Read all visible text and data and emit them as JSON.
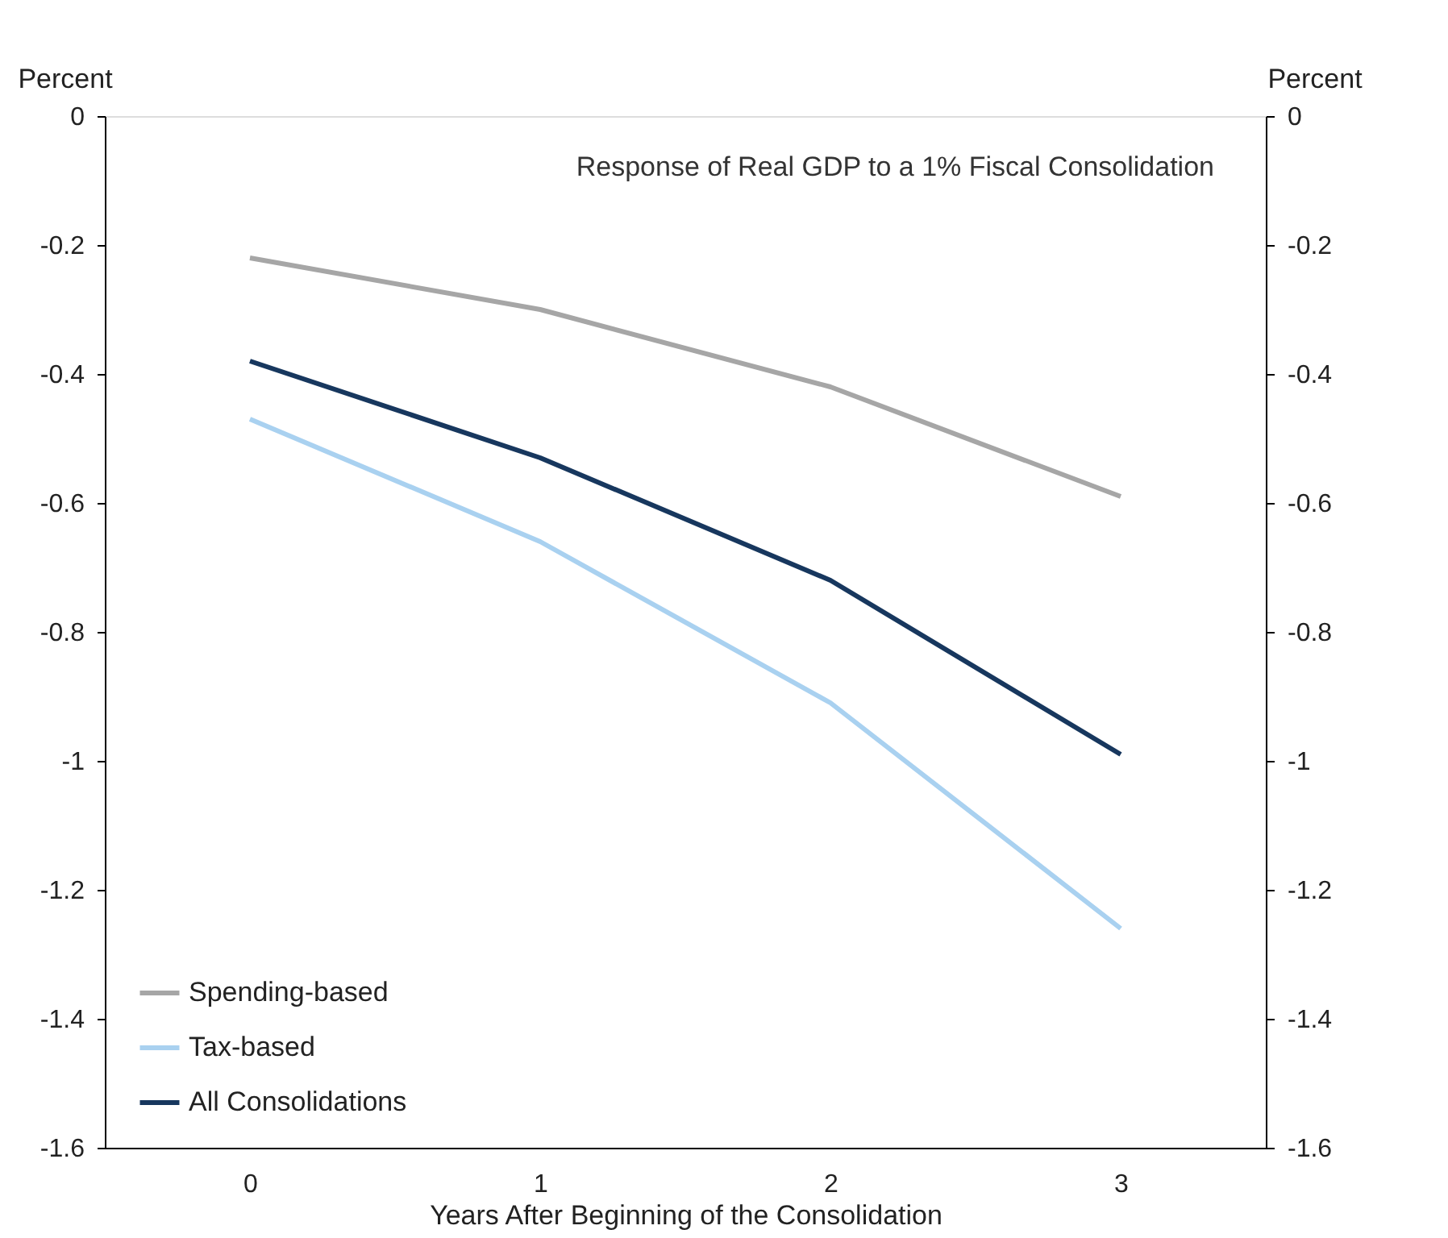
{
  "chart_data": {
    "type": "line",
    "title": "Response of Real GDP to a 1% Fiscal Consolidation",
    "xlabel": "Years After Beginning of the Consolidation",
    "ylabel": "Percent",
    "y2label": "Percent",
    "categories": [
      "0",
      "1",
      "2",
      "3"
    ],
    "series": [
      {
        "name": "Spending-based",
        "color": "#a6a6a6",
        "values": [
          -0.22,
          -0.3,
          -0.42,
          -0.59
        ]
      },
      {
        "name": "Tax-based",
        "color": "#a9d1f0",
        "values": [
          -0.47,
          -0.66,
          -0.91,
          -1.26
        ]
      },
      {
        "name": "All Consolidations",
        "color": "#17375e",
        "values": [
          -0.38,
          -0.53,
          -0.72,
          -0.99
        ]
      }
    ],
    "ylim": [
      -1.6,
      0
    ],
    "yticks": [
      -1.6,
      -1.4,
      -1.2,
      -1,
      -0.8,
      -0.6,
      -0.4,
      -0.2,
      0
    ],
    "y2lim": [
      -1.6,
      0
    ],
    "y2ticks": [
      -1.6,
      -1.4,
      -1.2,
      -1,
      -0.8,
      -0.6,
      -0.4,
      -0.2,
      0
    ],
    "legend": "bottom left",
    "grid": false,
    "marker": "none",
    "line_style": "solid"
  }
}
